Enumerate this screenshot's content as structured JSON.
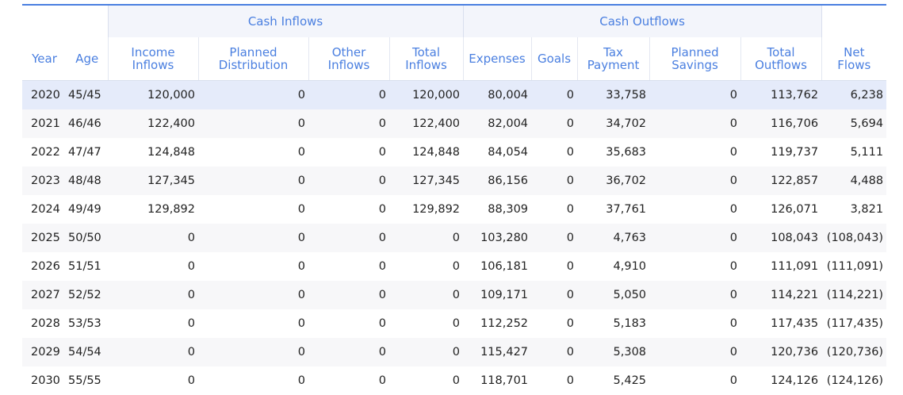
{
  "header_groups": {
    "inflows": "Cash Inflows",
    "outflows": "Cash Outflows"
  },
  "columns": {
    "year": "Year",
    "age": "Age",
    "income_inflows": [
      "Income",
      "Inflows"
    ],
    "planned_distribution": [
      "Planned",
      "Distribution"
    ],
    "other_inflows": [
      "Other",
      "Inflows"
    ],
    "total_inflows": [
      "Total",
      "Inflows"
    ],
    "expenses": "Expenses",
    "goals": "Goals",
    "tax_payment": [
      "Tax",
      "Payment"
    ],
    "planned_savings": [
      "Planned",
      "Savings"
    ],
    "total_outflows": [
      "Total",
      "Outflows"
    ],
    "net_flows": [
      "Net",
      "Flows"
    ]
  },
  "rows": [
    {
      "year": "2020",
      "age": "45/45",
      "income": "120,000",
      "planned_dist": "0",
      "other": "0",
      "total_in": "120,000",
      "expenses": "80,004",
      "goals": "0",
      "tax": "33,758",
      "savings": "0",
      "total_out": "113,762",
      "net": "6,238"
    },
    {
      "year": "2021",
      "age": "46/46",
      "income": "122,400",
      "planned_dist": "0",
      "other": "0",
      "total_in": "122,400",
      "expenses": "82,004",
      "goals": "0",
      "tax": "34,702",
      "savings": "0",
      "total_out": "116,706",
      "net": "5,694"
    },
    {
      "year": "2022",
      "age": "47/47",
      "income": "124,848",
      "planned_dist": "0",
      "other": "0",
      "total_in": "124,848",
      "expenses": "84,054",
      "goals": "0",
      "tax": "35,683",
      "savings": "0",
      "total_out": "119,737",
      "net": "5,111"
    },
    {
      "year": "2023",
      "age": "48/48",
      "income": "127,345",
      "planned_dist": "0",
      "other": "0",
      "total_in": "127,345",
      "expenses": "86,156",
      "goals": "0",
      "tax": "36,702",
      "savings": "0",
      "total_out": "122,857",
      "net": "4,488"
    },
    {
      "year": "2024",
      "age": "49/49",
      "income": "129,892",
      "planned_dist": "0",
      "other": "0",
      "total_in": "129,892",
      "expenses": "88,309",
      "goals": "0",
      "tax": "37,761",
      "savings": "0",
      "total_out": "126,071",
      "net": "3,821"
    },
    {
      "year": "2025",
      "age": "50/50",
      "income": "0",
      "planned_dist": "0",
      "other": "0",
      "total_in": "0",
      "expenses": "103,280",
      "goals": "0",
      "tax": "4,763",
      "savings": "0",
      "total_out": "108,043",
      "net": "(108,043)"
    },
    {
      "year": "2026",
      "age": "51/51",
      "income": "0",
      "planned_dist": "0",
      "other": "0",
      "total_in": "0",
      "expenses": "106,181",
      "goals": "0",
      "tax": "4,910",
      "savings": "0",
      "total_out": "111,091",
      "net": "(111,091)"
    },
    {
      "year": "2027",
      "age": "52/52",
      "income": "0",
      "planned_dist": "0",
      "other": "0",
      "total_in": "0",
      "expenses": "109,171",
      "goals": "0",
      "tax": "5,050",
      "savings": "0",
      "total_out": "114,221",
      "net": "(114,221)"
    },
    {
      "year": "2028",
      "age": "53/53",
      "income": "0",
      "planned_dist": "0",
      "other": "0",
      "total_in": "0",
      "expenses": "112,252",
      "goals": "0",
      "tax": "5,183",
      "savings": "0",
      "total_out": "117,435",
      "net": "(117,435)"
    },
    {
      "year": "2029",
      "age": "54/54",
      "income": "0",
      "planned_dist": "0",
      "other": "0",
      "total_in": "0",
      "expenses": "115,427",
      "goals": "0",
      "tax": "5,308",
      "savings": "0",
      "total_out": "120,736",
      "net": "(120,736)"
    },
    {
      "year": "2030",
      "age": "55/55",
      "income": "0",
      "planned_dist": "0",
      "other": "0",
      "total_in": "0",
      "expenses": "118,701",
      "goals": "0",
      "tax": "5,425",
      "savings": "0",
      "total_out": "124,126",
      "net": "(124,126)"
    }
  ],
  "selected_row_index": 0,
  "colors": {
    "accent": "#4a7fe0",
    "band": "#f3f5fb",
    "selected": "#e5ebfa",
    "stripe": "#f7f7f9"
  }
}
